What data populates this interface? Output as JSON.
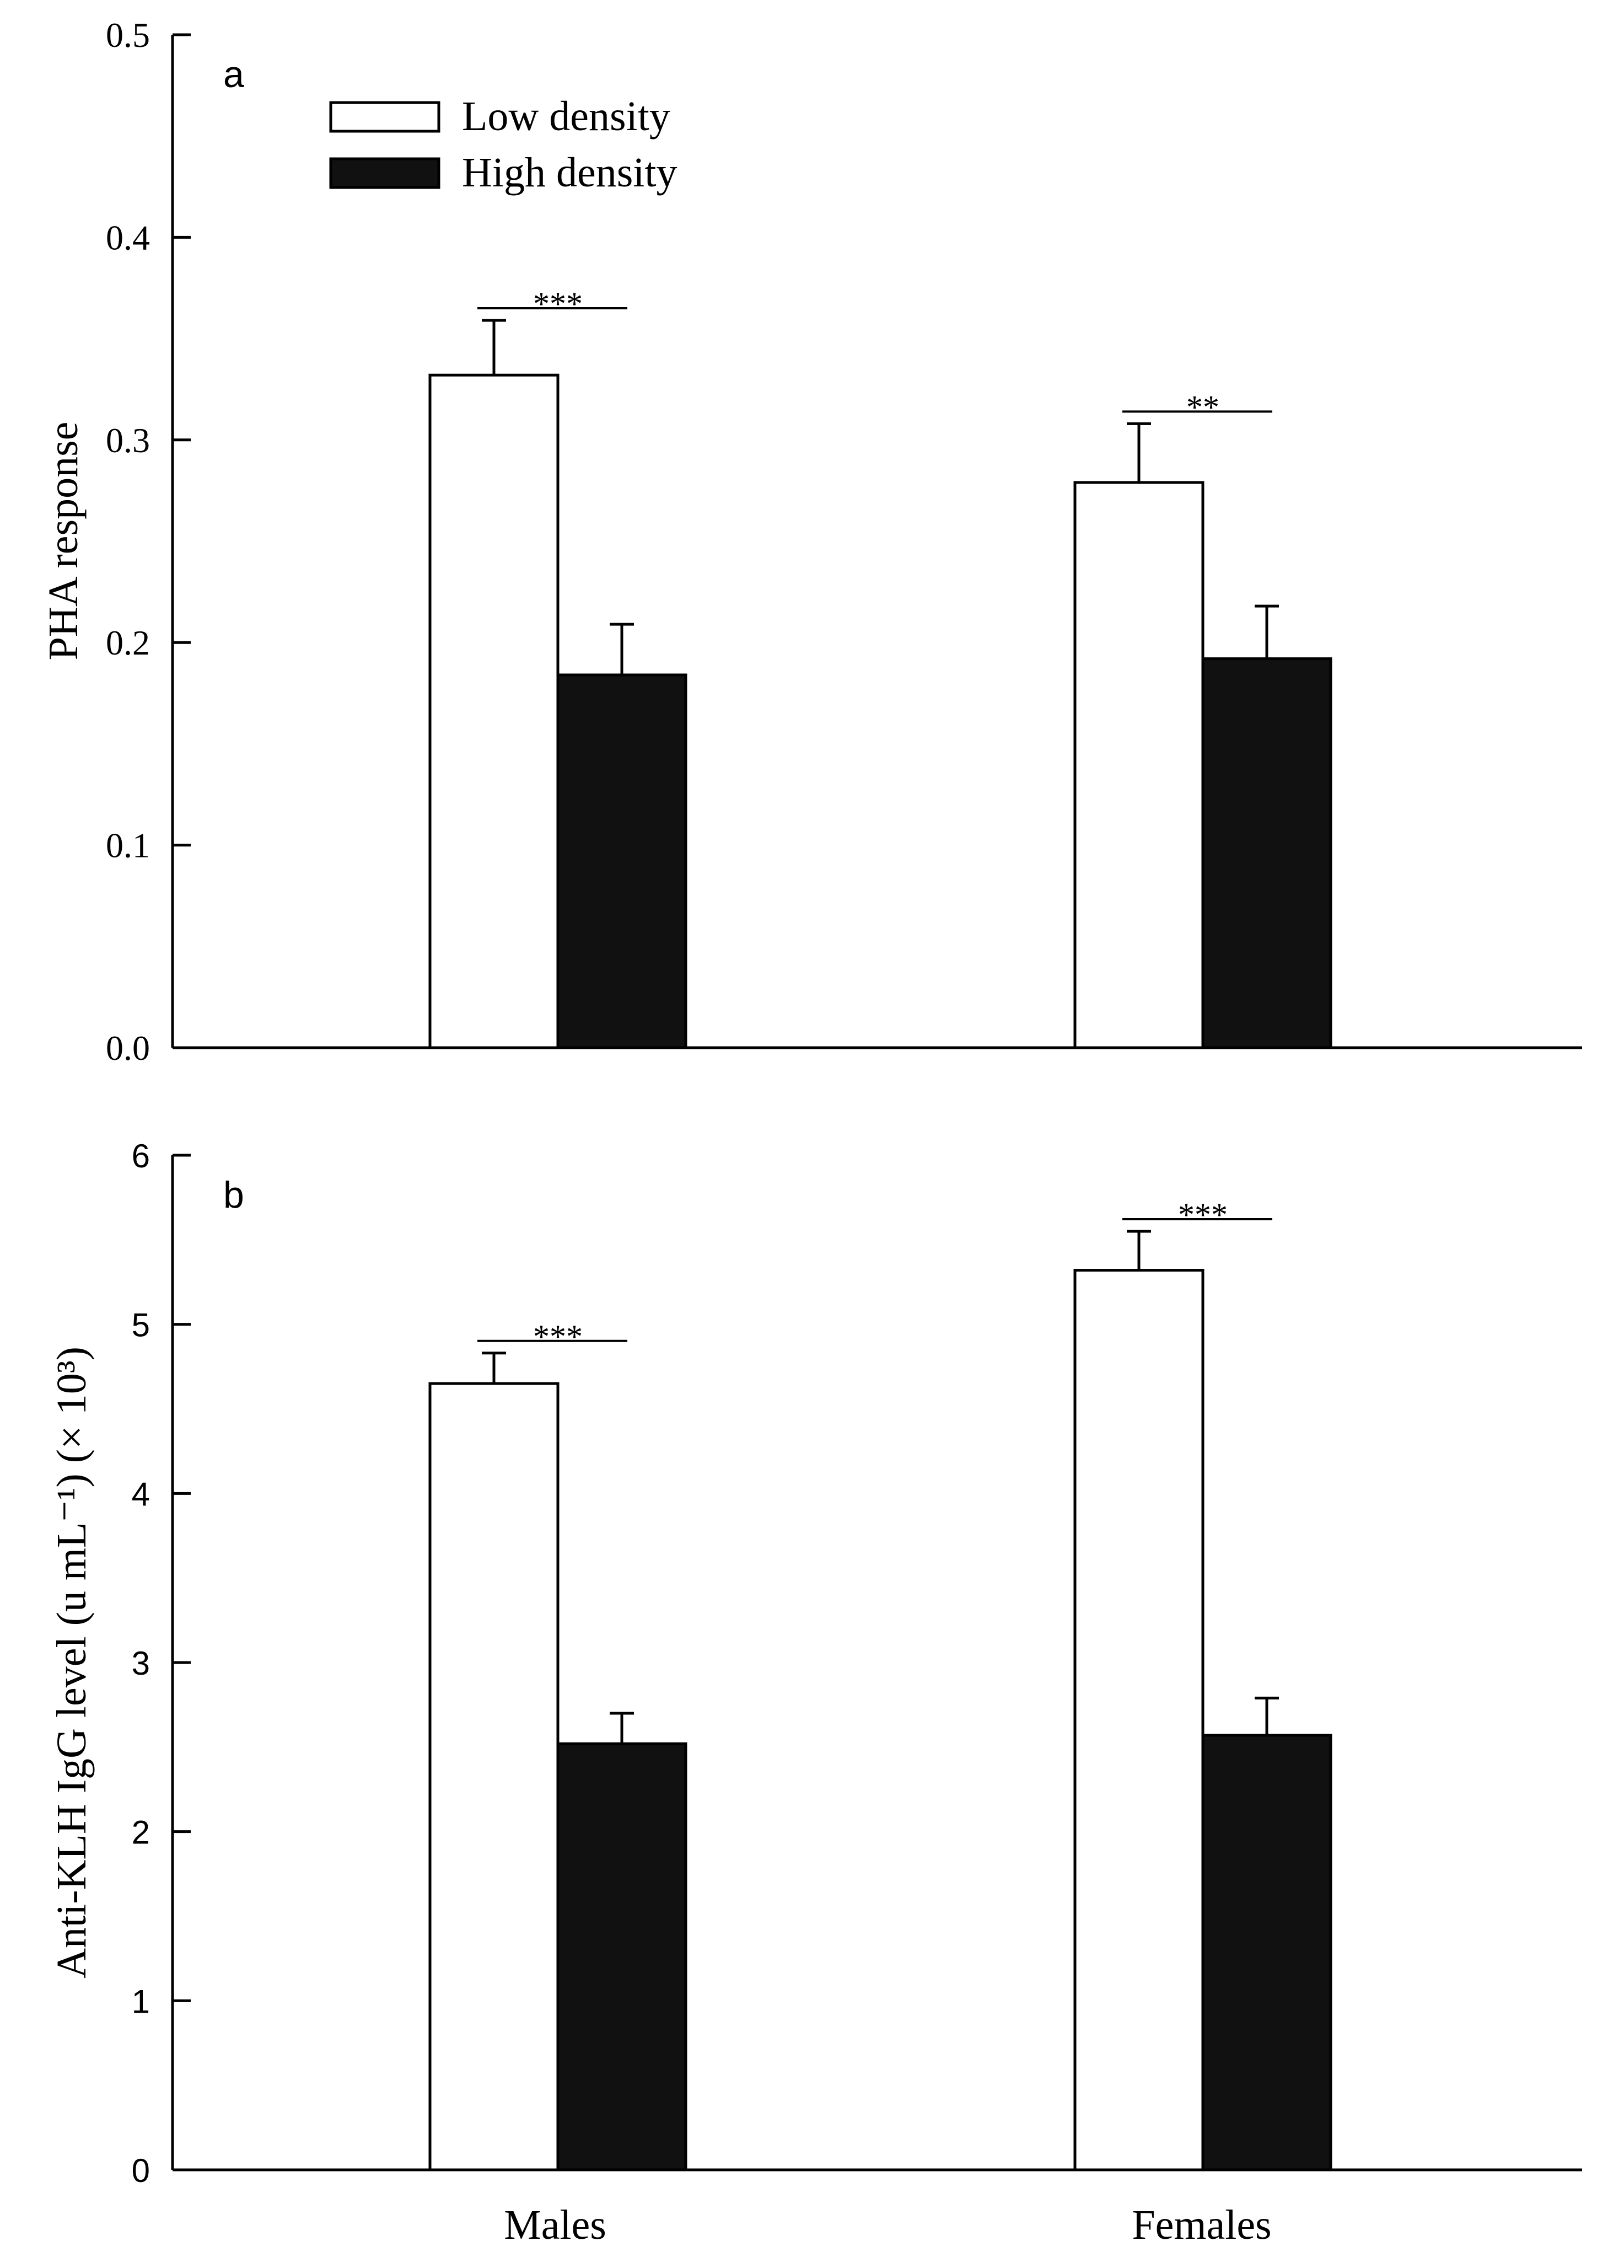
{
  "chart_data": [
    {
      "type": "bar",
      "panel_label": "a",
      "title": "",
      "xlabel": "",
      "ylabel": "PHA response",
      "categories": [
        "Males",
        "Females"
      ],
      "ylim": [
        0,
        0.5
      ],
      "yticks": [
        "0.0",
        "0.1",
        "0.2",
        "0.3",
        "0.4",
        "0.5"
      ],
      "tick_values": [
        0,
        0.1,
        0.2,
        0.3,
        0.4,
        0.5
      ],
      "legend_position": "top-left",
      "series": [
        {
          "name": "Low density",
          "fill": "#ffffff",
          "values": [
            0.332,
            0.279
          ],
          "errors": [
            0.027,
            0.029
          ]
        },
        {
          "name": "High density",
          "fill": "#111111",
          "values": [
            0.184,
            0.192
          ],
          "errors": [
            0.025,
            0.026
          ]
        }
      ],
      "significance": [
        "***",
        "**"
      ]
    },
    {
      "type": "bar",
      "panel_label": "b",
      "title": "",
      "xlabel": "",
      "ylabel": "Anti-KLH IgG level (u mL⁻¹) (× 10³)",
      "categories": [
        "Males",
        "Females"
      ],
      "ylim": [
        0,
        6
      ],
      "yticks": [
        "0",
        "1",
        "2",
        "3",
        "4",
        "5",
        "6"
      ],
      "tick_values": [
        0,
        1,
        2,
        3,
        4,
        5,
        6
      ],
      "series": [
        {
          "name": "Low density",
          "fill": "#ffffff",
          "values": [
            4.65,
            5.32
          ],
          "errors": [
            0.18,
            0.23
          ]
        },
        {
          "name": "High density",
          "fill": "#111111",
          "values": [
            2.52,
            2.57
          ],
          "errors": [
            0.18,
            0.22
          ]
        }
      ],
      "significance": [
        "***",
        "***"
      ]
    }
  ],
  "colors": {
    "axis": "#000000",
    "low_density": "#ffffff",
    "high_density": "#111111"
  }
}
